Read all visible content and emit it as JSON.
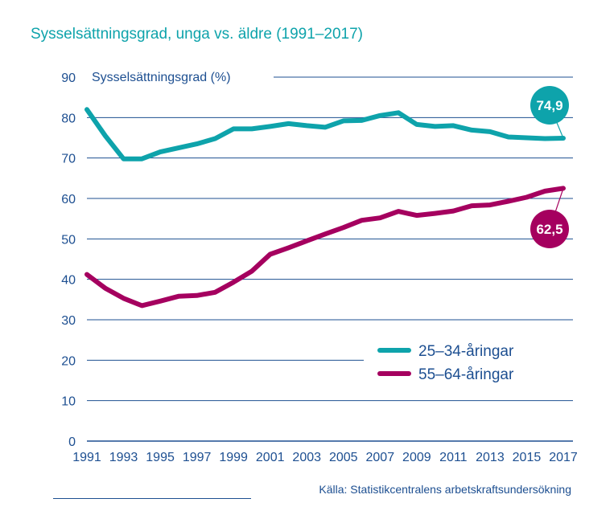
{
  "title": "Sysselsättningsgrad, unga vs. äldre (1991–2017)",
  "source": "Källa: Statistikcentralens arbetskraftsundersökning",
  "colors": {
    "text": "#1d4f91",
    "grid": "#1d4f91",
    "title": "#0ea3ab",
    "young": "#0ea3ab",
    "old": "#a5005f"
  },
  "chart_data": {
    "type": "line",
    "ylabel": "Sysselsättningsgrad (%)",
    "ylim": [
      0,
      90
    ],
    "yticks": [
      0,
      10,
      20,
      30,
      40,
      50,
      60,
      70,
      80,
      90
    ],
    "xlim": [
      1991,
      2017
    ],
    "xticks": [
      1991,
      1993,
      1995,
      1997,
      1999,
      2001,
      2003,
      2005,
      2007,
      2009,
      2011,
      2013,
      2015,
      2017
    ],
    "grid": true,
    "legend_position": "bottom-right",
    "series": [
      {
        "name": "25–34-åringar",
        "color": "#0ea3ab",
        "end_label": "74,9",
        "x": [
          1991,
          1992,
          1993,
          1994,
          1995,
          1996,
          1997,
          1998,
          1999,
          2000,
          2001,
          2002,
          2003,
          2004,
          2005,
          2006,
          2007,
          2008,
          2009,
          2010,
          2011,
          2012,
          2013,
          2014,
          2015,
          2016,
          2017
        ],
        "y": [
          82.0,
          75.5,
          69.8,
          69.8,
          71.5,
          72.5,
          73.5,
          74.8,
          77.2,
          77.2,
          77.8,
          78.5,
          78.0,
          77.6,
          79.2,
          79.3,
          80.5,
          81.2,
          78.3,
          77.8,
          78.0,
          76.9,
          76.5,
          75.2,
          75.0,
          74.8,
          74.9
        ]
      },
      {
        "name": "55–64-åringar",
        "color": "#a5005f",
        "end_label": "62,5",
        "x": [
          1991,
          1992,
          1993,
          1994,
          1995,
          1996,
          1997,
          1998,
          1999,
          2000,
          2001,
          2002,
          2003,
          2004,
          2005,
          2006,
          2007,
          2008,
          2009,
          2010,
          2011,
          2012,
          2013,
          2014,
          2015,
          2016,
          2017
        ],
        "y": [
          41.2,
          37.8,
          35.3,
          33.5,
          34.6,
          35.8,
          36.0,
          36.8,
          39.3,
          42.0,
          46.2,
          47.8,
          49.5,
          51.2,
          52.8,
          54.6,
          55.2,
          56.8,
          55.8,
          56.3,
          56.9,
          58.2,
          58.4,
          59.3,
          60.3,
          61.8,
          62.5
        ]
      }
    ]
  }
}
